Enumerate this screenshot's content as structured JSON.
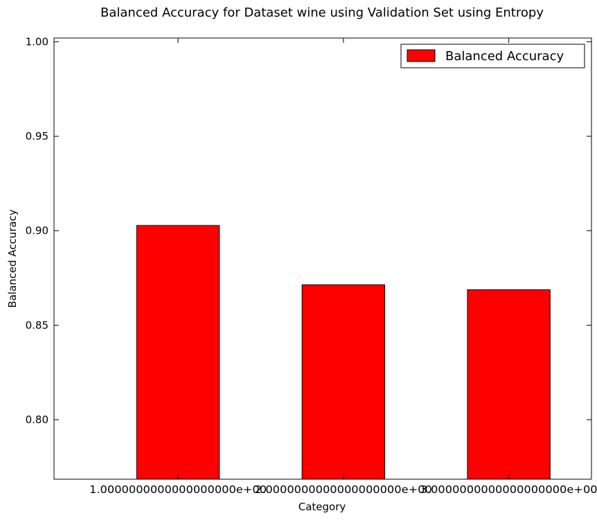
{
  "chart_data": {
    "type": "bar",
    "title": "Balanced Accuracy for Dataset wine using Validation Set using Entropy",
    "xlabel": "Category",
    "ylabel": "Balanced Accuracy",
    "categories": [
      "1.0000000000000000000e+00",
      "2.0000000000000000000e+00",
      "3.0000000000000000000e+00"
    ],
    "series": [
      {
        "name": "Balanced Accuracy",
        "values": [
          0.9028,
          0.8714,
          0.8688
        ],
        "color": "#ff0000"
      }
    ],
    "ylim": [
      0.7685,
      1.002
    ],
    "yticks": [
      0.8,
      0.85,
      0.9,
      0.95,
      1.0
    ],
    "ytick_labels": [
      "0.80",
      "0.85",
      "0.90",
      "0.95",
      "1.00"
    ],
    "grid": false,
    "legend_position": "top-right"
  }
}
